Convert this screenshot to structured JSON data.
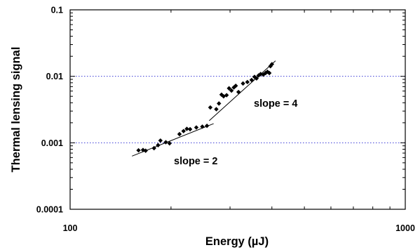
{
  "chart_data": {
    "type": "scatter",
    "xlabel": "Energy (µJ)",
    "ylabel": "Thermal lensing signal",
    "x_scale": "log",
    "y_scale": "log",
    "xlim": [
      100,
      1000
    ],
    "ylim": [
      0.0001,
      0.1
    ],
    "x_ticks": [
      {
        "value": 100,
        "label": "100"
      },
      {
        "value": 1000,
        "label": "1000"
      }
    ],
    "y_ticks": [
      {
        "value": 0.1,
        "label": "0.1"
      },
      {
        "value": 0.01,
        "label": "0.01"
      },
      {
        "value": 0.001,
        "label": "0.001"
      },
      {
        "value": 0.0001,
        "label": "0.0001"
      }
    ],
    "gridlines_y": [
      0.01,
      0.001
    ],
    "grid_color": "#3b3bd6",
    "series": [
      {
        "marker": "diamond",
        "color": "#000000",
        "points": [
          [
            160,
            0.00077
          ],
          [
            165,
            0.00078
          ],
          [
            168,
            0.00076
          ],
          [
            178,
            0.00083
          ],
          [
            183,
            0.00092
          ],
          [
            186,
            0.00108
          ],
          [
            193,
            0.00102
          ],
          [
            198,
            0.00098
          ],
          [
            212,
            0.00135
          ],
          [
            218,
            0.0015
          ],
          [
            223,
            0.00162
          ],
          [
            228,
            0.0016
          ],
          [
            238,
            0.0017
          ],
          [
            248,
            0.00175
          ],
          [
            256,
            0.0018
          ],
          [
            262,
            0.0034
          ],
          [
            273,
            0.0032
          ],
          [
            278,
            0.0039
          ],
          [
            283,
            0.0053
          ],
          [
            287,
            0.005
          ],
          [
            293,
            0.0052
          ],
          [
            298,
            0.0066
          ],
          [
            303,
            0.0061
          ],
          [
            308,
            0.0068
          ],
          [
            312,
            0.0072
          ],
          [
            318,
            0.0058
          ],
          [
            328,
            0.0078
          ],
          [
            338,
            0.0082
          ],
          [
            348,
            0.0088
          ],
          [
            355,
            0.0098
          ],
          [
            360,
            0.0093
          ],
          [
            365,
            0.0103
          ],
          [
            370,
            0.0108
          ],
          [
            377,
            0.0106
          ],
          [
            383,
            0.0112
          ],
          [
            388,
            0.0117
          ],
          [
            393,
            0.0112
          ],
          [
            396,
            0.0142
          ],
          [
            400,
            0.0152
          ]
        ]
      }
    ],
    "fit_lines": [
      {
        "label": "slope = 2",
        "x": [
          153,
          268
        ],
        "y": [
          0.00063,
          0.00194
        ]
      },
      {
        "label": "slope = 4",
        "x": [
          260,
          410
        ],
        "y": [
          0.00215,
          0.0171
        ]
      }
    ],
    "annotations": [
      "slope = 4",
      "slope = 2"
    ]
  }
}
